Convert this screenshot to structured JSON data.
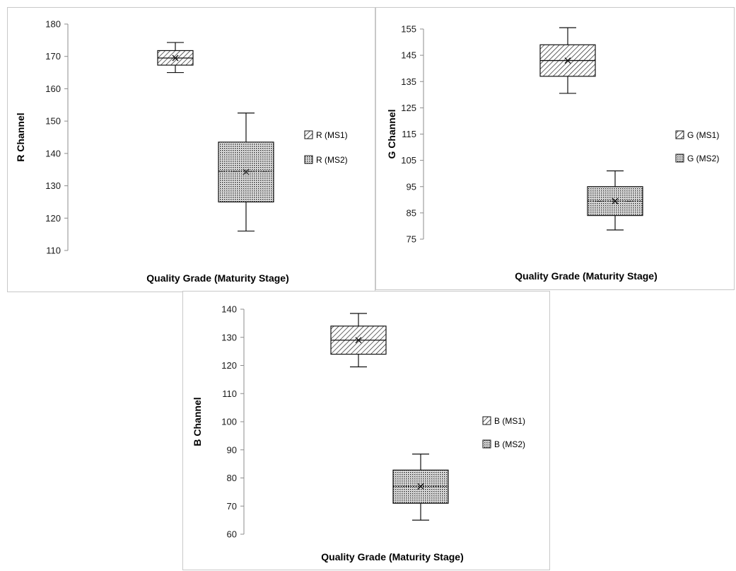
{
  "chart_data": [
    {
      "type": "box",
      "ylabel": "R Channel",
      "xlabel": "Quality Grade (Maturity Stage)",
      "ylim": [
        110,
        180
      ],
      "yticks": [
        "110",
        "120",
        "130",
        "140",
        "150",
        "160",
        "170",
        "180"
      ],
      "legend_position": "right",
      "series": [
        {
          "name": "R (MS1)",
          "pattern": "hatch",
          "min": 165,
          "q1": 167.3,
          "median": 169.5,
          "q3": 171.8,
          "max": 174.3,
          "mean": 169.5
        },
        {
          "name": "R (MS2)",
          "pattern": "dots",
          "min": 116,
          "q1": 125,
          "median": 134.5,
          "q3": 143.5,
          "max": 152.5,
          "mean": 134.3
        }
      ]
    },
    {
      "type": "box",
      "ylabel": "G Channel",
      "xlabel": "Quality  Grade (Maturity Stage)",
      "ylim": [
        75,
        155
      ],
      "yticks": [
        "75",
        "85",
        "95",
        "105",
        "115",
        "125",
        "135",
        "145",
        "155"
      ],
      "legend_position": "right",
      "series": [
        {
          "name": "G (MS1)",
          "pattern": "hatch",
          "min": 130.5,
          "q1": 137,
          "median": 143,
          "q3": 149,
          "max": 155.5,
          "mean": 143
        },
        {
          "name": "G (MS2)",
          "pattern": "dots",
          "min": 78.5,
          "q1": 84,
          "median": 89.5,
          "q3": 95,
          "max": 101,
          "mean": 89.5
        }
      ]
    },
    {
      "type": "box",
      "ylabel": "B Channel",
      "xlabel": "Quality Grade (Maturity Stage)",
      "ylim": [
        60,
        140
      ],
      "yticks": [
        "60",
        "70",
        "80",
        "90",
        "100",
        "110",
        "120",
        "130",
        "140"
      ],
      "legend_position": "right",
      "series": [
        {
          "name": "B (MS1)",
          "pattern": "hatch",
          "min": 119.5,
          "q1": 124,
          "median": 129,
          "q3": 134,
          "max": 138.5,
          "mean": 129
        },
        {
          "name": "B (MS2)",
          "pattern": "dots",
          "min": 65,
          "q1": 71,
          "median": 77,
          "q3": 82.8,
          "max": 88.5,
          "mean": 77
        }
      ]
    }
  ]
}
